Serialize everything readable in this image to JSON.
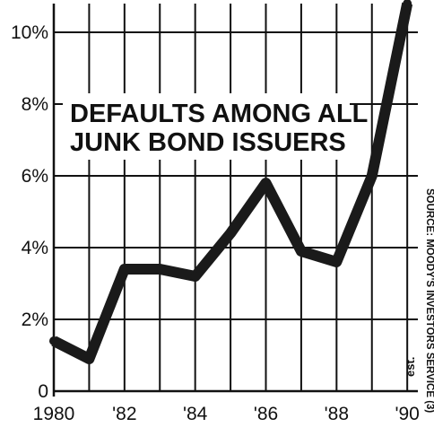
{
  "chart_data": {
    "type": "line",
    "title_lines": [
      "DEFAULTS AMONG ALL",
      "JUNK BOND ISSUERS"
    ],
    "x": [
      1980,
      1981,
      1982,
      1983,
      1984,
      1985,
      1986,
      1987,
      1988,
      1989,
      1990
    ],
    "values": [
      1.4,
      0.9,
      3.4,
      3.4,
      3.2,
      4.4,
      5.8,
      3.9,
      3.6,
      6.0,
      10.8
    ],
    "xlim": [
      1980,
      1990.3
    ],
    "ylim": [
      0,
      10.8
    ],
    "x_ticks": [
      1980,
      1982,
      1984,
      1986,
      1988,
      1990
    ],
    "x_tick_labels": [
      "1980",
      "'82",
      "'84",
      "'86",
      "'88",
      "'90"
    ],
    "y_ticks": [
      0,
      2,
      4,
      6,
      8,
      10
    ],
    "y_tick_labels": [
      "0",
      "2%",
      "4%",
      "6%",
      "8%",
      "10%"
    ],
    "grid": true,
    "annotation": "est.",
    "source": "SOURCE: MOODY'S INVESTORS SERVICE (3)"
  }
}
